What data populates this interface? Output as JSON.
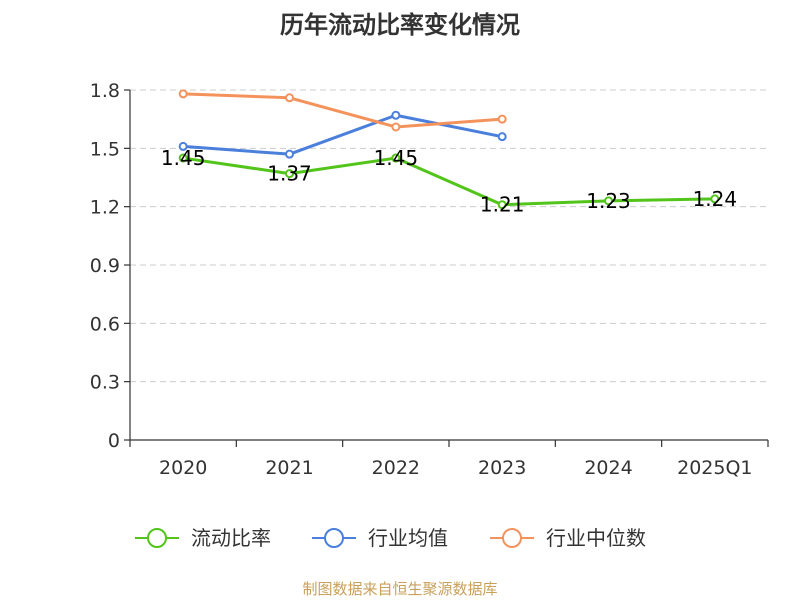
{
  "chart_data": {
    "type": "line",
    "title": "历年流动比率变化情况",
    "categories": [
      "2020",
      "2021",
      "2022",
      "2023",
      "2024",
      "2025Q1"
    ],
    "ylim": [
      0,
      1.8
    ],
    "yticks": [
      "0",
      "0.3",
      "0.6",
      "0.9",
      "1.2",
      "1.5",
      "1.8"
    ],
    "grid": true,
    "legend_position": "bottom",
    "series": [
      {
        "name": "流动比率",
        "color": "#52c41a",
        "values": [
          1.45,
          1.37,
          1.45,
          1.21,
          1.23,
          1.24
        ],
        "labels": [
          "1.45",
          "1.37",
          "1.45",
          "1.21",
          "1.23",
          "1.24"
        ]
      },
      {
        "name": "行业均值",
        "color": "#4a7fdb",
        "values": [
          1.51,
          1.47,
          1.67,
          1.56,
          null,
          null
        ]
      },
      {
        "name": "行业中位数",
        "color": "#f4925c",
        "values": [
          1.78,
          1.76,
          1.61,
          1.65,
          null,
          null
        ]
      }
    ]
  },
  "source": "制图数据来自恒生聚源数据库"
}
